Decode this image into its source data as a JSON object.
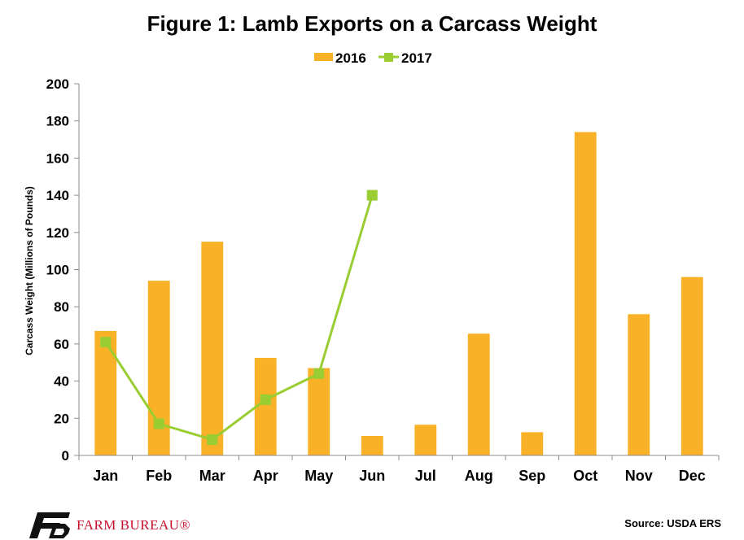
{
  "chart_data": {
    "type": "bar",
    "title": "Figure 1: Lamb Exports on a Carcass Weight",
    "ylabel": "Carcass Weight (Millions of Pounds)",
    "xlabel": "",
    "ylim": [
      0,
      200
    ],
    "yticks": [
      0,
      20,
      40,
      60,
      80,
      100,
      120,
      140,
      160,
      180,
      200
    ],
    "grid": false,
    "legend_position": "top-center",
    "categories": [
      "Jan",
      "Feb",
      "Mar",
      "Apr",
      "May",
      "Jun",
      "Jul",
      "Aug",
      "Sep",
      "Oct",
      "Nov",
      "Dec"
    ],
    "series": [
      {
        "name": "2016",
        "type": "bar",
        "color": "#f9b127",
        "values": [
          67,
          94,
          115,
          52.5,
          47,
          10.5,
          16.5,
          65.5,
          12.5,
          174,
          76,
          96
        ]
      },
      {
        "name": "2017",
        "type": "line",
        "marker": "square",
        "color": "#9acd32",
        "values": [
          61,
          17,
          8.5,
          30,
          44,
          140,
          null,
          null,
          null,
          null,
          null,
          null
        ]
      }
    ]
  },
  "footer": {
    "brand": "FARM BUREAU®",
    "brand_color": "#c8102e",
    "logo": "farm-bureau-fb-logo",
    "source": "Source: USDA ERS"
  }
}
